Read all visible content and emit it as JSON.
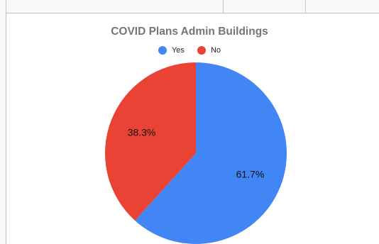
{
  "chart_data": {
    "type": "pie",
    "title": "COVID Plans Admin Buildings",
    "categories": [
      "Yes",
      "No"
    ],
    "values": [
      61.7,
      38.3
    ],
    "labels": [
      "61.7%",
      "38.3%"
    ],
    "colors": [
      "#4285f4",
      "#ea4335"
    ],
    "legend_position": "top"
  }
}
